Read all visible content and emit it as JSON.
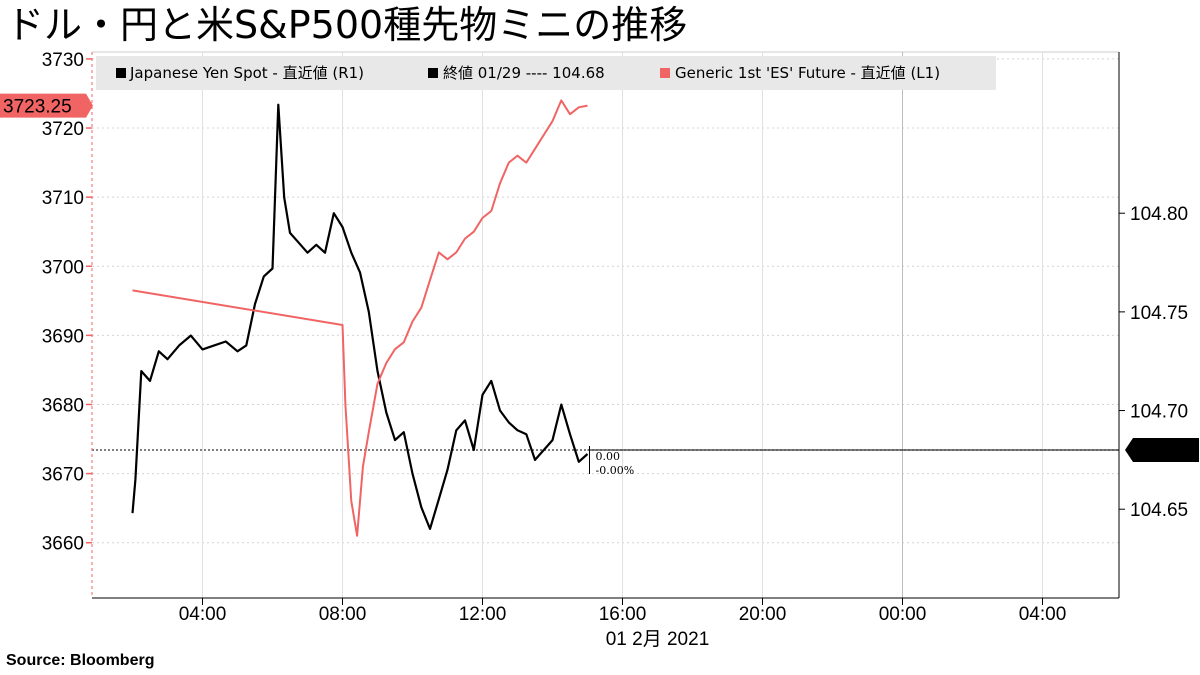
{
  "title": "ドル・円と米S&P500種先物ミニの推移",
  "source": "Source:  Bloomberg",
  "chart_data": {
    "type": "line",
    "left_axis": {
      "ylim": [
        3652,
        3731
      ],
      "ticks": [
        3660,
        3670,
        3680,
        3690,
        3700,
        3710,
        3720,
        3730
      ]
    },
    "right_axis": {
      "ylim": [
        104.605,
        104.8817
      ],
      "ticks": [
        "104.65",
        "104.70",
        "104.75",
        "104.80"
      ]
    },
    "x_axis": {
      "ticks": [
        "04:00",
        "08:00",
        "12:00",
        "16:00",
        "20:00",
        "00:00",
        "04:00"
      ],
      "date_label": "01 2月 2021"
    },
    "legend": [
      {
        "name": "Japanese Yen Spot - 直近値 (R1)",
        "color": "#000000"
      },
      {
        "name": "終値 01/29 ---- 104.68",
        "color": "#000000"
      },
      {
        "name": "Generic 1st 'ES' Future - 直近値 (L1)",
        "color": "#f06464"
      }
    ],
    "last_price_tags": {
      "left": "3723.25",
      "right": "104.68"
    },
    "change_labels": [
      "0.00",
      "-0.00%"
    ],
    "colors": {
      "yen": "#000000",
      "es": "#f06464",
      "tag_left": "#f06464",
      "tag_right": "#000000"
    },
    "series": [
      {
        "name": "Japanese Yen Spot - 直近値 (R1)",
        "axis": "right",
        "x": [
          "02:00",
          "02:05",
          "02:15",
          "02:30",
          "02:45",
          "03:00",
          "03:20",
          "03:40",
          "04:00",
          "04:20",
          "04:40",
          "05:00",
          "05:15",
          "05:30",
          "05:45",
          "06:00",
          "06:10",
          "06:20",
          "06:30",
          "06:45",
          "07:00",
          "07:15",
          "07:30",
          "07:45",
          "08:00",
          "08:15",
          "08:30",
          "08:45",
          "09:00",
          "09:15",
          "09:30",
          "09:45",
          "10:00",
          "10:15",
          "10:30",
          "10:45",
          "11:00",
          "11:15",
          "11:30",
          "11:45",
          "12:00",
          "12:15",
          "12:30",
          "12:45",
          "13:00",
          "13:15",
          "13:30",
          "13:45",
          "14:00",
          "14:15",
          "14:30",
          "14:45",
          "15:00"
        ],
        "values": [
          104.648,
          104.665,
          104.72,
          104.715,
          104.73,
          104.726,
          104.733,
          104.738,
          104.731,
          104.733,
          104.735,
          104.73,
          104.733,
          104.754,
          104.768,
          104.772,
          104.855,
          104.808,
          104.79,
          104.785,
          104.78,
          104.784,
          104.78,
          104.8,
          104.793,
          104.78,
          104.77,
          104.75,
          104.72,
          104.699,
          104.685,
          104.689,
          104.668,
          104.651,
          104.64,
          104.655,
          104.67,
          104.69,
          104.695,
          104.68,
          104.708,
          104.715,
          104.7,
          104.694,
          104.69,
          104.688,
          104.675,
          104.68,
          104.685,
          104.703,
          104.688,
          104.674,
          104.678
        ]
      },
      {
        "name": "Generic 1st 'ES' Future - 直近値 (L1)",
        "axis": "left",
        "x": [
          "02:00",
          "08:00",
          "08:05",
          "08:15",
          "08:25",
          "08:35",
          "08:45",
          "09:00",
          "09:15",
          "09:30",
          "09:45",
          "10:00",
          "10:15",
          "10:30",
          "10:45",
          "11:00",
          "11:15",
          "11:30",
          "11:45",
          "12:00",
          "12:15",
          "12:30",
          "12:45",
          "13:00",
          "13:15",
          "13:30",
          "13:45",
          "14:00",
          "14:15",
          "14:30",
          "14:45",
          "15:00"
        ],
        "values": [
          3696.5,
          3691.5,
          3680,
          3666,
          3661,
          3671,
          3676,
          3683,
          3686,
          3688,
          3689,
          3692,
          3694,
          3698,
          3702,
          3701,
          3702,
          3704,
          3705,
          3707,
          3708,
          3712,
          3715,
          3716,
          3715,
          3717,
          3719,
          3721,
          3724,
          3722,
          3723,
          3723.25
        ]
      }
    ]
  }
}
